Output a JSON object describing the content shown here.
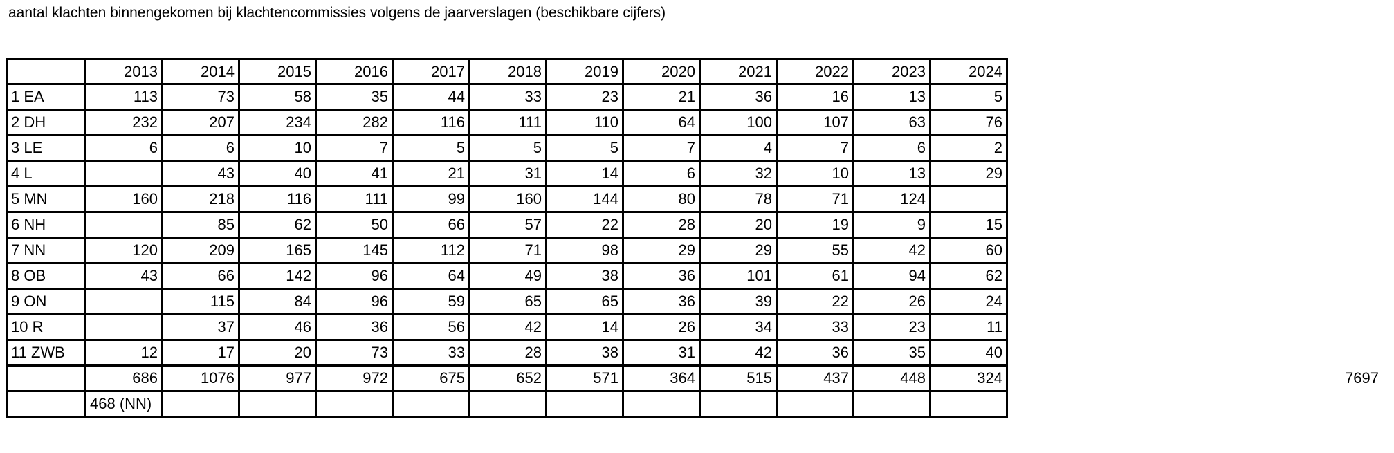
{
  "title": "aantal klachten binnengekomen bij klachtencommissies volgens de jaarverslagen (beschikbare cijfers)",
  "grand_total": "7697",
  "table": {
    "corner_header": "",
    "year_headers": [
      "2013",
      "2014",
      "2015",
      "2016",
      "2017",
      "2018",
      "2019",
      "2020",
      "2021",
      "2022",
      "2023",
      "2024"
    ],
    "rows": [
      {
        "label": "1 EA",
        "values": [
          "113",
          "73",
          "58",
          "35",
          "44",
          "33",
          "23",
          "21",
          "36",
          "16",
          "13",
          "5"
        ]
      },
      {
        "label": "2 DH",
        "values": [
          "232",
          "207",
          "234",
          "282",
          "116",
          "111",
          "110",
          "64",
          "100",
          "107",
          "63",
          "76"
        ]
      },
      {
        "label": "3 LE",
        "values": [
          "6",
          "6",
          "10",
          "7",
          "5",
          "5",
          "5",
          "7",
          "4",
          "7",
          "6",
          "2"
        ]
      },
      {
        "label": "4 L",
        "values": [
          "",
          "43",
          "40",
          "41",
          "21",
          "31",
          "14",
          "6",
          "32",
          "10",
          "13",
          "29"
        ]
      },
      {
        "label": "5 MN",
        "values": [
          "160",
          "218",
          "116",
          "111",
          "99",
          "160",
          "144",
          "80",
          "78",
          "71",
          "124",
          ""
        ]
      },
      {
        "label": "6 NH",
        "values": [
          "",
          "85",
          "62",
          "50",
          "66",
          "57",
          "22",
          "28",
          "20",
          "19",
          "9",
          "15"
        ]
      },
      {
        "label": "7 NN",
        "values": [
          "120",
          "209",
          "165",
          "145",
          "112",
          "71",
          "98",
          "29",
          "29",
          "55",
          "42",
          "60"
        ]
      },
      {
        "label": "8 OB",
        "values": [
          "43",
          "66",
          "142",
          "96",
          "64",
          "49",
          "38",
          "36",
          "101",
          "61",
          "94",
          "62"
        ]
      },
      {
        "label": "9 ON",
        "values": [
          "",
          "115",
          "84",
          "96",
          "59",
          "65",
          "65",
          "36",
          "39",
          "22",
          "26",
          "24"
        ]
      },
      {
        "label": "10 R",
        "values": [
          "",
          "37",
          "46",
          "36",
          "56",
          "42",
          "14",
          "26",
          "34",
          "33",
          "23",
          "11"
        ]
      },
      {
        "label": "11 ZWB",
        "values": [
          "12",
          "17",
          "20",
          "73",
          "33",
          "28",
          "38",
          "31",
          "42",
          "36",
          "35",
          "40"
        ]
      },
      {
        "label": "",
        "type": "totals",
        "values": [
          "686",
          "1076",
          "977",
          "972",
          "675",
          "652",
          "571",
          "364",
          "515",
          "437",
          "448",
          "324"
        ]
      },
      {
        "label": "",
        "type": "note",
        "values": [
          "468 (NN)",
          "",
          "",
          "",
          "",
          "",
          "",
          "",
          "",
          "",
          "",
          ""
        ]
      }
    ]
  }
}
